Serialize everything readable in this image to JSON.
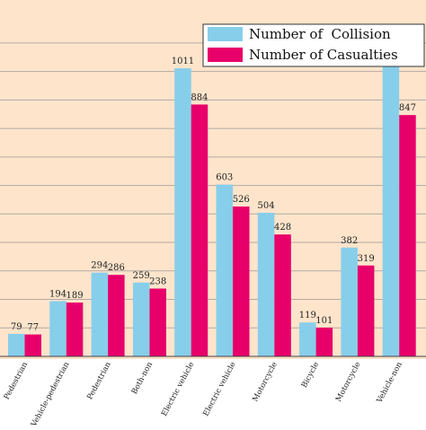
{
  "chart_data": {
    "type": "bar",
    "categories": [
      "Pedestrian",
      "Vehicle-pedestrian",
      "Pedestrian",
      "Both-non",
      "Electric vehicle",
      "Electric vehicle",
      "Motorcycle",
      "Bicycle",
      "Motorcycle",
      "Vehicle-non"
    ],
    "series": [
      {
        "name": "Number of  Collision",
        "color": "#87ceeb",
        "values": [
          79,
          194,
          294,
          259,
          1011,
          603,
          504,
          119,
          382,
          1017
        ]
      },
      {
        "name": "Number of Casualties",
        "color": "#e8006a",
        "values": [
          77,
          189,
          286,
          238,
          884,
          526,
          428,
          101,
          319,
          847
        ]
      }
    ],
    "ylim": [
      0,
      1150
    ],
    "grid": true,
    "legend": "top-right",
    "background": "#fde4cb",
    "gridline_color": "#b3aaa3"
  }
}
